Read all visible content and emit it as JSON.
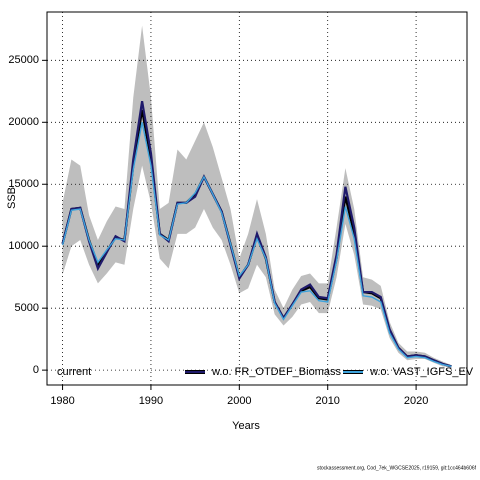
{
  "chart_data": {
    "type": "line",
    "xlabel": "Years",
    "ylabel": "SSB",
    "footer": "stockassessment.org, Cod_7ek_WGCSE2025, r19159, git:1cc464b606f",
    "x": [
      1980,
      1981,
      1982,
      1983,
      1984,
      1985,
      1986,
      1987,
      1988,
      1989,
      1990,
      1991,
      1992,
      1993,
      1994,
      1995,
      1996,
      1997,
      1998,
      1999,
      2000,
      2001,
      2002,
      2003,
      2004,
      2005,
      2006,
      2007,
      2008,
      2009,
      2010,
      2011,
      2012,
      2013,
      2014,
      2015,
      2016,
      2017,
      2018,
      2019,
      2020,
      2021,
      2022,
      2023,
      2024
    ],
    "band": {
      "color": "#bebebe",
      "upper": [
        13500,
        17000,
        16500,
        12500,
        10500,
        12000,
        13200,
        13000,
        22000,
        27800,
        22000,
        13000,
        13500,
        17800,
        17000,
        18500,
        20000,
        18000,
        15500,
        13000,
        9000,
        11000,
        13800,
        11000,
        6500,
        5000,
        6500,
        7600,
        7800,
        7000,
        7000,
        11500,
        16300,
        13000,
        7500,
        7300,
        6800,
        3900,
        2200,
        1500,
        1500,
        1400,
        1000,
        700,
        400
      ],
      "lower": [
        7700,
        10000,
        10500,
        8500,
        7000,
        7800,
        8700,
        8500,
        13000,
        16500,
        13500,
        9000,
        8200,
        11000,
        11000,
        11500,
        13000,
        11500,
        10500,
        8500,
        6200,
        6600,
        8500,
        7500,
        4500,
        3600,
        4300,
        5300,
        5500,
        4600,
        4600,
        7500,
        11800,
        9300,
        5300,
        5200,
        4900,
        2600,
        1400,
        800,
        900,
        900,
        600,
        300,
        200
      ]
    },
    "series": [
      {
        "name": "current",
        "color": "#000000",
        "values": [
          10200,
          13000,
          13100,
          10500,
          8500,
          9600,
          10700,
          10500,
          16500,
          21000,
          17000,
          11000,
          10500,
          13500,
          13500,
          14200,
          15600,
          14200,
          12800,
          10200,
          7500,
          8500,
          10800,
          9000,
          5500,
          4200,
          5300,
          6400,
          6700,
          5800,
          5700,
          9000,
          14000,
          11000,
          6300,
          6200,
          5800,
          3200,
          1800,
          1100,
          1200,
          1100,
          800,
          500,
          300
        ]
      },
      {
        "name": "w.o. FR_OTDEF_Biomass",
        "color": "#1f1a6b",
        "values": [
          10200,
          13000,
          13100,
          10400,
          8200,
          9500,
          10800,
          10400,
          17000,
          21700,
          17500,
          11000,
          10400,
          13500,
          13500,
          14000,
          15600,
          14200,
          12800,
          10100,
          7400,
          8500,
          11000,
          9100,
          5500,
          4200,
          5300,
          6500,
          6900,
          5900,
          5800,
          9300,
          14800,
          11500,
          6300,
          6300,
          5900,
          3300,
          1800,
          1100,
          1200,
          1100,
          800,
          500,
          300
        ]
      },
      {
        "name": "w.o. VAST_IGFS_EV",
        "color": "#3ea3dc",
        "values": [
          10100,
          12900,
          13000,
          10500,
          8700,
          9700,
          10600,
          10500,
          16200,
          20000,
          16500,
          10900,
          10500,
          13400,
          13500,
          14300,
          15600,
          14200,
          12700,
          10200,
          7600,
          8500,
          10600,
          9000,
          5400,
          4100,
          5200,
          6300,
          6400,
          5600,
          5500,
          8800,
          13200,
          10600,
          6000,
          5900,
          5500,
          3000,
          1700,
          1000,
          1100,
          1000,
          700,
          450,
          300
        ]
      }
    ],
    "xlim": [
      1978.24,
      2025.76
    ],
    "ylim": [
      -1200,
      28900
    ],
    "xticks": [
      1980,
      1990,
      2000,
      2010,
      2020
    ],
    "yticks": [
      0,
      5000,
      10000,
      15000,
      20000,
      25000
    ],
    "grid": true,
    "legend": "bottom"
  }
}
